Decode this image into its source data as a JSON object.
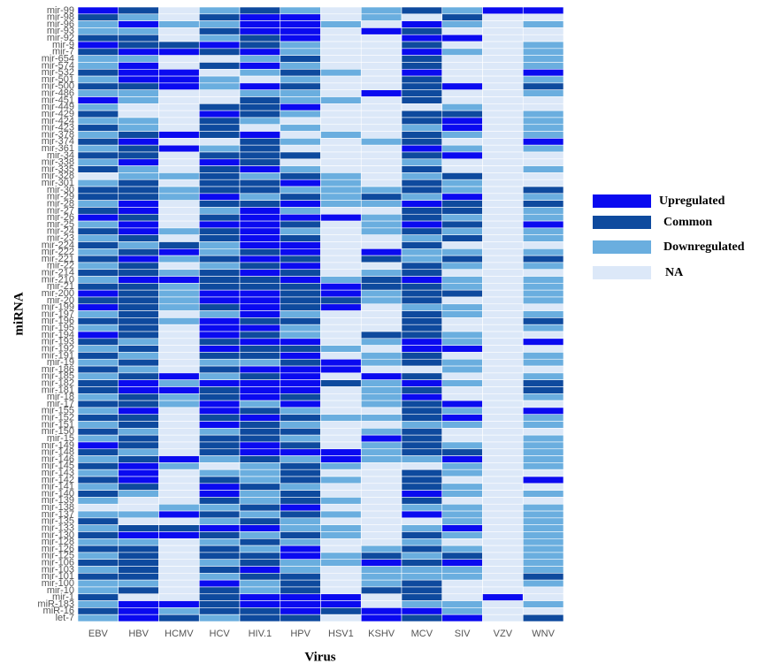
{
  "chart_data": {
    "type": "heatmap",
    "x_label": "Virus",
    "y_label": "miRNA",
    "columns": [
      "EBV",
      "HBV",
      "HCMV",
      "HCV",
      "HIV.1",
      "HPV",
      "HSV1",
      "KSHV",
      "MCV",
      "SIV",
      "VZV",
      "WNV"
    ],
    "rows": [
      "mir-99",
      "mir-98",
      "mir-96",
      "mir-93",
      "mir-92",
      "mir-9",
      "mir-7",
      "mir-654",
      "mir-574",
      "mir-532",
      "mir-501",
      "mir-500",
      "mir-486",
      "mir-451",
      "mir-449",
      "mir-429",
      "mir-424",
      "mir-423",
      "mir-378",
      "mir-374",
      "mir-361",
      "mir-34",
      "mir-338",
      "mir-335",
      "mir-328",
      "mir-301",
      "mir-30",
      "mir-29",
      "mir-28",
      "mir-27",
      "mir-26",
      "mir-25",
      "mir-24",
      "mir-23",
      "mir-224",
      "mir-222",
      "mir-221",
      "mir-22",
      "mir-214",
      "mir-210",
      "mir-21",
      "mir-200",
      "mir-20",
      "mir-199",
      "mir-197",
      "mir-196",
      "mir-195",
      "mir-194",
      "mir-193",
      "mir-192",
      "mir-191",
      "mir-19",
      "mir-186",
      "mir-185",
      "mir-182",
      "mir-181",
      "mir-18",
      "mir-17",
      "mir-155",
      "mir-152",
      "mir-151",
      "mir-150",
      "mir-15",
      "mir-149",
      "mir-148",
      "mir-146",
      "mir-145",
      "mir-143",
      "mir-142",
      "mir-141",
      "mir-140",
      "mir-139",
      "mir-138",
      "mir-137",
      "mir-135",
      "mir-133",
      "mir-130",
      "mir-128",
      "mir-126",
      "mir-125",
      "mir-106",
      "mir-103",
      "mir-101",
      "mir-100",
      "mir-10",
      "mir-1",
      "miR-183",
      "miR-16",
      "let-7"
    ],
    "legend": [
      {
        "name": "Upregulated",
        "color": "#0a0af0"
      },
      {
        "name": "Common",
        "color": "#0e4a9e"
      },
      {
        "name": "Downregulated",
        "color": "#6aaedf"
      },
      {
        "name": "NA",
        "color": "#dce8f8"
      }
    ],
    "values": [
      [
        0,
        1,
        3,
        2,
        1,
        2,
        3,
        2,
        1,
        2,
        0,
        0
      ],
      [
        1,
        2,
        3,
        1,
        0,
        0,
        3,
        2,
        3,
        1,
        3,
        3
      ],
      [
        2,
        0,
        2,
        2,
        0,
        0,
        2,
        3,
        0,
        2,
        3,
        2
      ],
      [
        2,
        2,
        3,
        1,
        0,
        0,
        3,
        0,
        1,
        3,
        3,
        3
      ],
      [
        1,
        1,
        3,
        2,
        1,
        0,
        3,
        3,
        0,
        0,
        3,
        3
      ],
      [
        0,
        1,
        1,
        0,
        1,
        2,
        3,
        3,
        1,
        3,
        3,
        2
      ],
      [
        1,
        0,
        0,
        1,
        0,
        2,
        3,
        3,
        0,
        2,
        3,
        2
      ],
      [
        2,
        2,
        3,
        3,
        2,
        1,
        3,
        3,
        1,
        3,
        3,
        2
      ],
      [
        2,
        0,
        3,
        1,
        0,
        2,
        3,
        3,
        1,
        3,
        3,
        2
      ],
      [
        1,
        0,
        0,
        3,
        2,
        1,
        2,
        3,
        0,
        3,
        3,
        0
      ],
      [
        2,
        0,
        0,
        2,
        3,
        2,
        3,
        3,
        1,
        3,
        3,
        2
      ],
      [
        1,
        1,
        0,
        2,
        0,
        1,
        3,
        3,
        1,
        0,
        3,
        1
      ],
      [
        2,
        2,
        3,
        3,
        2,
        2,
        3,
        0,
        1,
        3,
        3,
        2
      ],
      [
        0,
        2,
        3,
        3,
        1,
        2,
        2,
        3,
        1,
        3,
        3,
        3
      ],
      [
        2,
        3,
        3,
        1,
        1,
        0,
        3,
        3,
        3,
        2,
        3,
        3
      ],
      [
        1,
        3,
        3,
        0,
        1,
        2,
        3,
        3,
        1,
        1,
        3,
        2
      ],
      [
        2,
        2,
        3,
        1,
        2,
        3,
        3,
        3,
        1,
        0,
        3,
        2
      ],
      [
        1,
        2,
        3,
        1,
        3,
        2,
        3,
        3,
        2,
        0,
        3,
        2
      ],
      [
        2,
        1,
        0,
        1,
        0,
        3,
        2,
        3,
        1,
        2,
        3,
        2
      ],
      [
        1,
        0,
        3,
        3,
        1,
        2,
        3,
        2,
        1,
        3,
        3,
        0
      ],
      [
        2,
        1,
        0,
        2,
        1,
        3,
        3,
        3,
        0,
        2,
        3,
        2
      ],
      [
        1,
        1,
        3,
        1,
        1,
        1,
        3,
        3,
        1,
        0,
        3,
        3
      ],
      [
        2,
        0,
        3,
        0,
        1,
        3,
        3,
        3,
        2,
        3,
        3,
        3
      ],
      [
        1,
        2,
        3,
        1,
        0,
        2,
        3,
        3,
        1,
        3,
        3,
        2
      ],
      [
        3,
        2,
        2,
        1,
        2,
        1,
        2,
        3,
        2,
        1,
        3,
        3
      ],
      [
        2,
        1,
        3,
        1,
        1,
        0,
        2,
        3,
        1,
        2,
        3,
        3
      ],
      [
        1,
        1,
        2,
        1,
        1,
        2,
        2,
        2,
        1,
        2,
        3,
        1
      ],
      [
        1,
        1,
        2,
        0,
        2,
        1,
        2,
        1,
        2,
        0,
        3,
        2
      ],
      [
        2,
        0,
        3,
        1,
        1,
        0,
        2,
        2,
        0,
        1,
        3,
        1
      ],
      [
        1,
        0,
        3,
        2,
        0,
        2,
        3,
        3,
        1,
        1,
        3,
        2
      ],
      [
        0,
        1,
        3,
        1,
        0,
        0,
        0,
        2,
        1,
        2,
        3,
        2
      ],
      [
        2,
        0,
        3,
        0,
        0,
        1,
        3,
        2,
        0,
        1,
        3,
        0
      ],
      [
        1,
        0,
        2,
        1,
        0,
        2,
        3,
        2,
        1,
        2,
        3,
        2
      ],
      [
        2,
        1,
        3,
        1,
        0,
        1,
        3,
        3,
        2,
        1,
        3,
        2
      ],
      [
        1,
        2,
        1,
        2,
        0,
        0,
        3,
        3,
        1,
        3,
        3,
        3
      ],
      [
        2,
        1,
        0,
        2,
        1,
        0,
        3,
        0,
        2,
        2,
        3,
        2
      ],
      [
        1,
        0,
        2,
        1,
        0,
        1,
        3,
        1,
        2,
        1,
        3,
        1
      ],
      [
        2,
        1,
        3,
        2,
        1,
        0,
        3,
        3,
        1,
        2,
        3,
        2
      ],
      [
        1,
        1,
        2,
        1,
        0,
        1,
        3,
        2,
        1,
        3,
        3,
        3
      ],
      [
        2,
        0,
        0,
        1,
        1,
        0,
        2,
        1,
        0,
        2,
        3,
        2
      ],
      [
        1,
        1,
        2,
        1,
        1,
        1,
        0,
        1,
        1,
        2,
        3,
        2
      ],
      [
        0,
        1,
        2,
        0,
        0,
        1,
        0,
        2,
        1,
        1,
        3,
        2
      ],
      [
        1,
        1,
        2,
        0,
        0,
        1,
        1,
        2,
        1,
        3,
        3,
        2
      ],
      [
        0,
        1,
        2,
        1,
        0,
        1,
        0,
        3,
        2,
        2,
        3,
        3
      ],
      [
        2,
        1,
        3,
        2,
        0,
        2,
        3,
        3,
        1,
        2,
        3,
        2
      ],
      [
        1,
        1,
        2,
        0,
        1,
        1,
        3,
        3,
        1,
        3,
        3,
        1
      ],
      [
        2,
        1,
        3,
        0,
        0,
        2,
        3,
        3,
        1,
        3,
        3,
        2
      ],
      [
        0,
        1,
        3,
        0,
        1,
        2,
        3,
        1,
        1,
        2,
        3,
        3
      ],
      [
        1,
        2,
        3,
        1,
        0,
        0,
        3,
        2,
        0,
        2,
        3,
        0
      ],
      [
        2,
        1,
        3,
        0,
        1,
        1,
        2,
        3,
        0,
        0,
        3,
        3
      ],
      [
        1,
        2,
        3,
        1,
        1,
        0,
        3,
        2,
        1,
        3,
        3,
        2
      ],
      [
        2,
        1,
        3,
        2,
        2,
        1,
        0,
        2,
        1,
        2,
        3,
        2
      ],
      [
        1,
        2,
        3,
        1,
        0,
        0,
        0,
        3,
        3,
        2,
        3,
        3
      ],
      [
        2,
        1,
        0,
        2,
        1,
        0,
        3,
        0,
        1,
        3,
        3,
        2
      ],
      [
        1,
        0,
        2,
        0,
        0,
        0,
        1,
        2,
        0,
        2,
        3,
        1
      ],
      [
        1,
        0,
        0,
        1,
        0,
        0,
        3,
        2,
        1,
        3,
        3,
        1
      ],
      [
        2,
        1,
        2,
        1,
        0,
        1,
        3,
        2,
        0,
        3,
        3,
        2
      ],
      [
        1,
        1,
        2,
        0,
        2,
        0,
        3,
        2,
        1,
        0,
        3,
        3
      ],
      [
        2,
        0,
        3,
        0,
        1,
        2,
        3,
        3,
        1,
        2,
        3,
        0
      ],
      [
        1,
        1,
        3,
        1,
        0,
        1,
        2,
        2,
        1,
        0,
        3,
        2
      ],
      [
        2,
        1,
        3,
        0,
        1,
        2,
        3,
        3,
        2,
        2,
        3,
        2
      ],
      [
        1,
        2,
        3,
        2,
        1,
        1,
        3,
        2,
        1,
        3,
        3,
        3
      ],
      [
        2,
        1,
        3,
        1,
        1,
        2,
        3,
        0,
        1,
        3,
        3,
        2
      ],
      [
        0,
        1,
        3,
        1,
        0,
        1,
        3,
        2,
        1,
        2,
        3,
        2
      ],
      [
        1,
        2,
        3,
        1,
        0,
        0,
        0,
        2,
        1,
        1,
        3,
        2
      ],
      [
        2,
        1,
        0,
        2,
        1,
        2,
        0,
        2,
        2,
        0,
        3,
        2
      ],
      [
        1,
        0,
        2,
        3,
        2,
        1,
        2,
        3,
        3,
        2,
        3,
        2
      ],
      [
        2,
        0,
        3,
        2,
        2,
        1,
        3,
        3,
        1,
        2,
        3,
        3
      ],
      [
        1,
        0,
        3,
        1,
        2,
        1,
        2,
        3,
        1,
        3,
        3,
        0
      ],
      [
        2,
        1,
        3,
        0,
        1,
        2,
        3,
        3,
        1,
        2,
        3,
        3
      ],
      [
        1,
        2,
        3,
        0,
        2,
        1,
        3,
        3,
        0,
        2,
        3,
        2
      ],
      [
        2,
        3,
        3,
        1,
        2,
        1,
        2,
        3,
        1,
        3,
        3,
        3
      ],
      [
        3,
        3,
        2,
        2,
        1,
        0,
        3,
        3,
        2,
        2,
        3,
        2
      ],
      [
        2,
        2,
        0,
        1,
        2,
        1,
        2,
        3,
        0,
        2,
        3,
        2
      ],
      [
        1,
        3,
        3,
        2,
        1,
        2,
        3,
        3,
        3,
        2,
        3,
        2
      ],
      [
        2,
        1,
        1,
        0,
        0,
        2,
        2,
        3,
        2,
        0,
        3,
        2
      ],
      [
        1,
        0,
        0,
        1,
        2,
        1,
        2,
        3,
        1,
        2,
        3,
        2
      ],
      [
        2,
        2,
        3,
        2,
        1,
        2,
        3,
        3,
        2,
        3,
        3,
        2
      ],
      [
        1,
        1,
        3,
        1,
        2,
        0,
        3,
        2,
        1,
        2,
        3,
        2
      ],
      [
        2,
        1,
        3,
        1,
        1,
        0,
        2,
        1,
        2,
        1,
        3,
        2
      ],
      [
        1,
        1,
        3,
        2,
        1,
        2,
        2,
        0,
        1,
        0,
        3,
        2
      ],
      [
        2,
        1,
        3,
        1,
        0,
        2,
        3,
        2,
        2,
        2,
        3,
        2
      ],
      [
        1,
        1,
        3,
        2,
        1,
        1,
        3,
        2,
        2,
        2,
        3,
        1
      ],
      [
        2,
        2,
        3,
        0,
        2,
        1,
        3,
        2,
        1,
        3,
        3,
        2
      ],
      [
        2,
        1,
        3,
        1,
        2,
        1,
        3,
        1,
        1,
        3,
        3,
        3
      ],
      [
        1,
        3,
        3,
        1,
        0,
        0,
        0,
        3,
        1,
        3,
        0,
        3
      ],
      [
        2,
        0,
        0,
        1,
        0,
        0,
        0,
        3,
        2,
        2,
        3,
        2
      ],
      [
        1,
        0,
        2,
        1,
        1,
        0,
        1,
        0,
        0,
        2,
        3,
        3
      ],
      [
        2,
        0,
        1,
        2,
        1,
        1,
        3,
        0,
        1,
        0,
        3,
        1
      ]
    ]
  }
}
